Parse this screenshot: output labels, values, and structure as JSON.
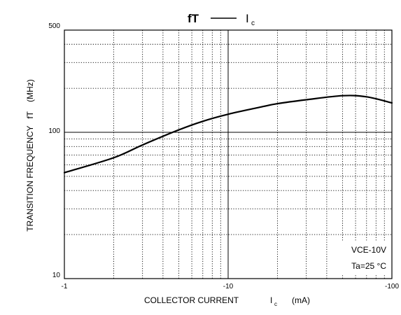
{
  "chart_data": {
    "type": "line",
    "title": {
      "left": "fT",
      "dash": "—",
      "right_main": "I",
      "right_sub": "c"
    },
    "xlabel": {
      "main": "COLLECTOR CURRENT",
      "symbol": "I",
      "sub": "c",
      "unit": "(mA)"
    },
    "ylabel": "TRANSITION FREQUENCY   fT    (MHz)",
    "x_scale": "log",
    "y_scale": "log",
    "xlim": [
      -1,
      -100
    ],
    "ylim": [
      10,
      500
    ],
    "x_ticks": [
      {
        "value": -1,
        "label": "-1"
      },
      {
        "value": -10,
        "label": "-10"
      },
      {
        "value": -100,
        "label": "-100"
      }
    ],
    "y_ticks": [
      {
        "value": 10,
        "label": "10"
      },
      {
        "value": 100,
        "label": "100"
      },
      {
        "value": 500,
        "label": "500"
      }
    ],
    "grid": true,
    "annotations": [
      "VCE-10V",
      "Ta=25 °C"
    ],
    "series": [
      {
        "x": [
          -1,
          -2,
          -3,
          -5,
          -7,
          -10,
          -15,
          -20,
          -30,
          -50,
          -70,
          -100
        ],
        "y": [
          53,
          67,
          82,
          104,
          119,
          133,
          147,
          157,
          167,
          178,
          175,
          159
        ]
      }
    ]
  }
}
